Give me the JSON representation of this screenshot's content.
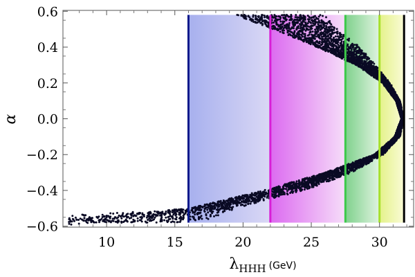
{
  "chart_data": {
    "type": "scatter",
    "title": "",
    "xlabel": {
      "symbol": "λ",
      "subscript": "HHH",
      "unit": "(GeV)"
    },
    "ylabel": "α",
    "xlim": [
      6.8,
      32.5
    ],
    "ylim": [
      -0.605,
      0.605
    ],
    "x_ticks": [
      10,
      15,
      20,
      25,
      30
    ],
    "y_ticks": [
      -0.6,
      -0.4,
      -0.2,
      0.0,
      0.2,
      0.4,
      0.6
    ],
    "x_tick_labels": [
      "10",
      "15",
      "20",
      "25",
      "30"
    ],
    "y_tick_labels": [
      "−0.6",
      "−0.4",
      "−0.2",
      "0.0",
      "0.2",
      "0.4",
      "0.6"
    ],
    "grid": false,
    "legend": "none",
    "scan_boundary": {
      "alpha_min": -0.58,
      "alpha_max": 0.58,
      "lambda_max": 31.8
    },
    "bands": [
      {
        "x_from": 16.0,
        "x_to": 22.0,
        "color_from": "#a7b0ee",
        "color_to": "#dad8f5"
      },
      {
        "x_from": 22.0,
        "x_to": 27.5,
        "color_from": "#dc6af0",
        "color_to": "#f6ddf9"
      },
      {
        "x_from": 27.5,
        "x_to": 30.0,
        "color_from": "#7fd18c",
        "color_to": "#dff3e0"
      },
      {
        "x_from": 30.0,
        "x_to": 31.8,
        "color_from": "#e4f28a",
        "color_to": "#fafbd6"
      }
    ],
    "vertical_lines": [
      {
        "x": 16.0,
        "color": "#0d1a8c"
      },
      {
        "x": 22.0,
        "color": "#d81ed6"
      },
      {
        "x": 27.5,
        "color": "#3cc94a"
      },
      {
        "x": 30.0,
        "color": "#a6e02a"
      },
      {
        "x": 31.8,
        "color": "#000000"
      }
    ],
    "series": [
      {
        "marker_color": "#0a0a24",
        "envelope_points": [
          {
            "alpha": 0.58,
            "lambda_inner": 19.4,
            "lambda_outer": 26.0
          },
          {
            "alpha": 0.5,
            "lambda_inner": 22.2,
            "lambda_outer": 27.0
          },
          {
            "alpha": 0.4,
            "lambda_inner": 25.4,
            "lambda_outer": 28.6
          },
          {
            "alpha": 0.3,
            "lambda_inner": 28.3,
            "lambda_outer": 29.7
          },
          {
            "alpha": 0.2,
            "lambda_inner": 30.2,
            "lambda_outer": 30.8
          },
          {
            "alpha": 0.1,
            "lambda_inner": 31.2,
            "lambda_outer": 31.5
          },
          {
            "alpha": 0.0,
            "lambda_inner": 31.6,
            "lambda_outer": 31.8
          },
          {
            "alpha": -0.1,
            "lambda_inner": 31.1,
            "lambda_outer": 31.5
          },
          {
            "alpha": -0.2,
            "lambda_inner": 29.6,
            "lambda_outer": 30.3
          },
          {
            "alpha": -0.3,
            "lambda_inner": 26.0,
            "lambda_outer": 28.0
          },
          {
            "alpha": -0.4,
            "lambda_inner": 21.5,
            "lambda_outer": 24.5
          },
          {
            "alpha": -0.5,
            "lambda_inner": 16.0,
            "lambda_outer": 19.5
          },
          {
            "alpha": -0.56,
            "lambda_inner": 7.2,
            "lambda_outer": 17.5
          },
          {
            "alpha": -0.58,
            "lambda_inner": 7.0,
            "lambda_outer": 16.0
          }
        ]
      }
    ]
  }
}
